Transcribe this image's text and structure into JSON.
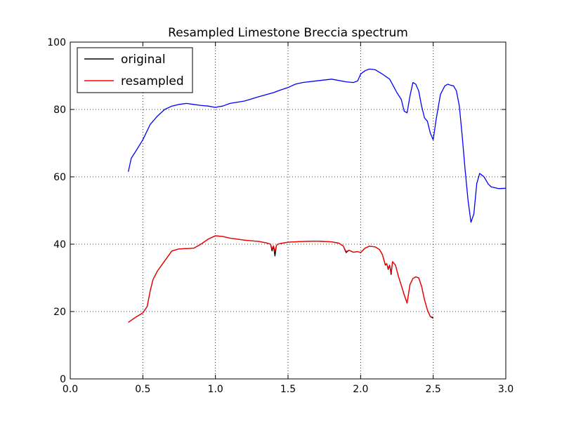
{
  "chart_data": {
    "type": "line",
    "title": "Resampled Limestone Breccia spectrum",
    "xlabel": "",
    "ylabel": "",
    "xlim": [
      0.0,
      3.0
    ],
    "ylim": [
      0,
      100
    ],
    "xticks": [
      "0.0",
      "0.5",
      "1.0",
      "1.5",
      "2.0",
      "2.5",
      "3.0"
    ],
    "yticks": [
      "0",
      "20",
      "40",
      "60",
      "80",
      "100"
    ],
    "grid": true,
    "legend_placement": "top-left",
    "series": [
      {
        "name": "original",
        "color": "#000000",
        "x": [
          0.4,
          0.45,
          0.5,
          0.53,
          0.55,
          0.57,
          0.6,
          0.65,
          0.7,
          0.75,
          0.8,
          0.85,
          0.9,
          0.95,
          1.0,
          1.05,
          1.1,
          1.2,
          1.3,
          1.35,
          1.38,
          1.39,
          1.4,
          1.41,
          1.42,
          1.43,
          1.45,
          1.5,
          1.6,
          1.7,
          1.8,
          1.85,
          1.88,
          1.9,
          1.92,
          1.95,
          1.98,
          2.0,
          2.03,
          2.06,
          2.1,
          2.13,
          2.15,
          2.17,
          2.18,
          2.19,
          2.2,
          2.21,
          2.22,
          2.24,
          2.26,
          2.28,
          2.3,
          2.32,
          2.34,
          2.36,
          2.38,
          2.4,
          2.42,
          2.44,
          2.46,
          2.48,
          2.5
        ],
        "y": [
          16.8,
          18.3,
          19.6,
          21.5,
          26.0,
          29.5,
          32.0,
          35.0,
          38.0,
          38.6,
          38.7,
          38.8,
          40.0,
          41.5,
          42.5,
          42.3,
          41.8,
          41.2,
          40.8,
          40.4,
          40.0,
          38.0,
          39.5,
          36.5,
          39.6,
          40.0,
          40.2,
          40.6,
          40.8,
          40.9,
          40.7,
          40.3,
          39.5,
          37.5,
          38.2,
          37.6,
          37.8,
          37.5,
          38.8,
          39.4,
          39.2,
          38.4,
          36.9,
          33.8,
          34.2,
          32.5,
          33.8,
          31.0,
          34.8,
          33.8,
          30.5,
          27.8,
          25.0,
          22.5,
          28.0,
          29.8,
          30.3,
          30.0,
          27.5,
          23.5,
          20.5,
          18.5,
          18.0
        ]
      },
      {
        "name": "resampled",
        "color": "#ff0000",
        "x": [
          0.4,
          0.45,
          0.5,
          0.53,
          0.55,
          0.57,
          0.6,
          0.65,
          0.7,
          0.75,
          0.8,
          0.85,
          0.9,
          0.95,
          1.0,
          1.05,
          1.1,
          1.2,
          1.3,
          1.35,
          1.38,
          1.39,
          1.4,
          1.41,
          1.42,
          1.43,
          1.45,
          1.5,
          1.6,
          1.7,
          1.8,
          1.85,
          1.88,
          1.9,
          1.92,
          1.95,
          1.98,
          2.0,
          2.03,
          2.06,
          2.1,
          2.13,
          2.15,
          2.17,
          2.18,
          2.19,
          2.2,
          2.21,
          2.22,
          2.24,
          2.26,
          2.28,
          2.3,
          2.32,
          2.34,
          2.36,
          2.38,
          2.4,
          2.42,
          2.44,
          2.46,
          2.48,
          2.5
        ],
        "y": [
          16.8,
          18.3,
          19.6,
          21.5,
          26.0,
          29.5,
          32.0,
          35.0,
          38.0,
          38.6,
          38.7,
          38.8,
          40.0,
          41.5,
          42.5,
          42.3,
          41.8,
          41.2,
          40.8,
          40.4,
          40.0,
          38.6,
          39.5,
          37.8,
          39.6,
          40.0,
          40.2,
          40.6,
          40.8,
          40.9,
          40.7,
          40.3,
          39.5,
          37.8,
          38.2,
          37.6,
          37.8,
          37.5,
          38.8,
          39.4,
          39.2,
          38.4,
          36.9,
          34.0,
          34.2,
          32.8,
          33.8,
          31.6,
          34.8,
          33.8,
          30.5,
          27.8,
          25.0,
          22.5,
          28.0,
          29.8,
          30.3,
          30.0,
          27.5,
          23.5,
          20.5,
          18.5,
          18.3
        ]
      },
      {
        "name": "",
        "color": "#0000ff",
        "x": [
          0.4,
          0.42,
          0.45,
          0.5,
          0.55,
          0.6,
          0.65,
          0.7,
          0.75,
          0.8,
          0.85,
          0.9,
          0.95,
          1.0,
          1.02,
          1.05,
          1.1,
          1.2,
          1.3,
          1.4,
          1.45,
          1.5,
          1.55,
          1.6,
          1.7,
          1.8,
          1.9,
          1.95,
          1.98,
          2.0,
          2.03,
          2.06,
          2.1,
          2.15,
          2.2,
          2.25,
          2.28,
          2.3,
          2.32,
          2.34,
          2.36,
          2.38,
          2.4,
          2.42,
          2.44,
          2.46,
          2.48,
          2.5,
          2.52,
          2.55,
          2.58,
          2.6,
          2.62,
          2.64,
          2.66,
          2.68,
          2.7,
          2.72,
          2.74,
          2.76,
          2.78,
          2.8,
          2.82,
          2.85,
          2.88,
          2.9,
          2.95,
          3.0
        ],
        "y": [
          61.5,
          65.5,
          67.5,
          71.0,
          75.5,
          78.0,
          80.0,
          81.0,
          81.5,
          81.8,
          81.5,
          81.2,
          81.0,
          80.6,
          80.8,
          81.0,
          81.8,
          82.5,
          83.8,
          85.0,
          85.8,
          86.5,
          87.5,
          88.0,
          88.5,
          89.0,
          88.2,
          88.0,
          88.5,
          90.5,
          91.5,
          92.0,
          91.8,
          90.5,
          89.0,
          85.0,
          83.0,
          79.5,
          79.0,
          84.0,
          88.0,
          87.5,
          85.5,
          81.0,
          77.5,
          76.5,
          73.0,
          71.0,
          77.0,
          84.5,
          87.0,
          87.5,
          87.2,
          87.0,
          85.5,
          81.0,
          72.0,
          62.0,
          53.0,
          46.5,
          49.0,
          58.0,
          61.0,
          60.0,
          57.8,
          57.0,
          56.5,
          56.6
        ]
      }
    ]
  }
}
